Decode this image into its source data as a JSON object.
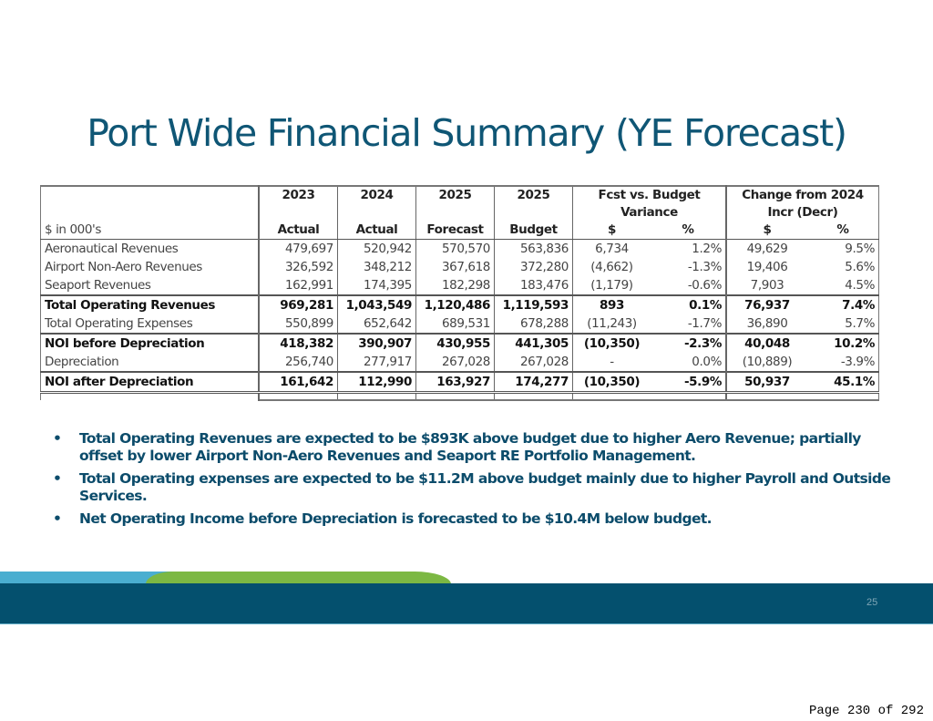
{
  "title": "Port Wide Financial Summary (YE Forecast)",
  "table": {
    "unit_label": "$ in 000's",
    "year_headers": [
      "2023",
      "2024",
      "2025",
      "2025"
    ],
    "group_headers": [
      "Fcst vs. Budget",
      "Variance",
      "Change from 2024",
      "Incr (Decr)"
    ],
    "sub_headers": [
      "Actual",
      "Actual",
      "Forecast",
      "Budget",
      "$",
      "%",
      "$",
      "%"
    ],
    "rows": [
      {
        "label": "Aeronautical Revenues",
        "values": [
          "479,697",
          "520,942",
          "570,570",
          "563,836",
          "6,734",
          "1.2%",
          "49,629",
          "9.5%"
        ]
      },
      {
        "label": "Airport Non-Aero Revenues",
        "values": [
          "326,592",
          "348,212",
          "367,618",
          "372,280",
          "(4,662)",
          "-1.3%",
          "19,406",
          "5.6%"
        ]
      },
      {
        "label": "Seaport Revenues",
        "values": [
          "162,991",
          "174,395",
          "182,298",
          "183,476",
          "(1,179)",
          "-0.6%",
          "7,903",
          "4.5%"
        ]
      },
      {
        "label": "Total Operating Revenues",
        "values": [
          "969,281",
          "1,043,549",
          "1,120,486",
          "1,119,593",
          "893",
          "0.1%",
          "76,937",
          "7.4%"
        ]
      },
      {
        "label": "Total Operating Expenses",
        "values": [
          "550,899",
          "652,642",
          "689,531",
          "678,288",
          "(11,243)",
          "-1.7%",
          "36,890",
          "5.7%"
        ]
      },
      {
        "label": "NOI before Depreciation",
        "values": [
          "418,382",
          "390,907",
          "430,955",
          "441,305",
          "(10,350)",
          "-2.3%",
          "40,048",
          "10.2%"
        ]
      },
      {
        "label": "Depreciation",
        "values": [
          "256,740",
          "277,917",
          "267,028",
          "267,028",
          "-",
          "0.0%",
          "(10,889)",
          "-3.9%"
        ]
      },
      {
        "label": "NOI after Depreciation",
        "values": [
          "161,642",
          "112,990",
          "163,927",
          "174,277",
          "(10,350)",
          "-5.9%",
          "50,937",
          "45.1%"
        ]
      }
    ]
  },
  "bullets": [
    "Total Operating Revenues are expected to be $893K above budget due to higher Aero Revenue; partially offset by lower Airport Non-Aero Revenues and Seaport RE Portfolio Management.",
    "Total Operating expenses are expected to be $11.2M above budget mainly due to higher Payroll and Outside Services.",
    "Net Operating Income before Depreciation is forecasted to be $10.4M below budget."
  ],
  "slide_number": "25",
  "page_footer": "Page 230 of 292",
  "colors": {
    "title": "#0f5675",
    "band": "#04506e",
    "stripe_blue": "#4aaed0",
    "stripe_green": "#7cb843"
  }
}
